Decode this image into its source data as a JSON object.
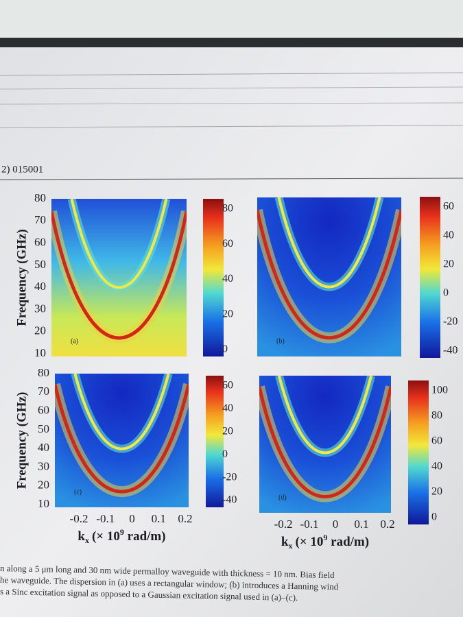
{
  "header": {
    "page_ref": "2) 015001"
  },
  "figure": {
    "y_axis": {
      "label": "Frequency (GHz)",
      "ticks_top": [
        "80",
        "70",
        "60",
        "50",
        "40",
        "30",
        "20",
        "10"
      ],
      "ticks_bottom": [
        "80",
        "70",
        "60",
        "50",
        "40",
        "30",
        "20",
        "10"
      ]
    },
    "x_axis": {
      "symbol": "k",
      "subscript": "x",
      "text": "(× 10",
      "superscript": "9",
      "unit": " rad/m)",
      "ticks": [
        "-0.2",
        "-0.1",
        "0",
        "0.1",
        "0.2"
      ]
    },
    "panels": [
      {
        "label": "(a)",
        "colorbar_ticks": [
          "80",
          "60",
          "40",
          "20",
          "0"
        ]
      },
      {
        "label": "(b)",
        "colorbar_ticks": [
          "60",
          "40",
          "20",
          "0",
          "-20",
          "-40"
        ]
      },
      {
        "label": "(c)",
        "colorbar_ticks": [
          "60",
          "40",
          "20",
          "0",
          "-20",
          "-40"
        ]
      },
      {
        "label": "(d)",
        "colorbar_ticks": [
          "100",
          "80",
          "60",
          "40",
          "20",
          "0"
        ]
      }
    ]
  },
  "caption": [
    "n along a 5 μm long and 30 nm wide permalloy waveguide with thickness = 10 nm. Bias field",
    "he waveguide. The dispersion in (a) uses a rectangular window; (b) introduces a Hanning wind",
    "s a Sinc excitation signal as opposed to a Gaussian excitation signal used in (a)–(c)."
  ]
}
